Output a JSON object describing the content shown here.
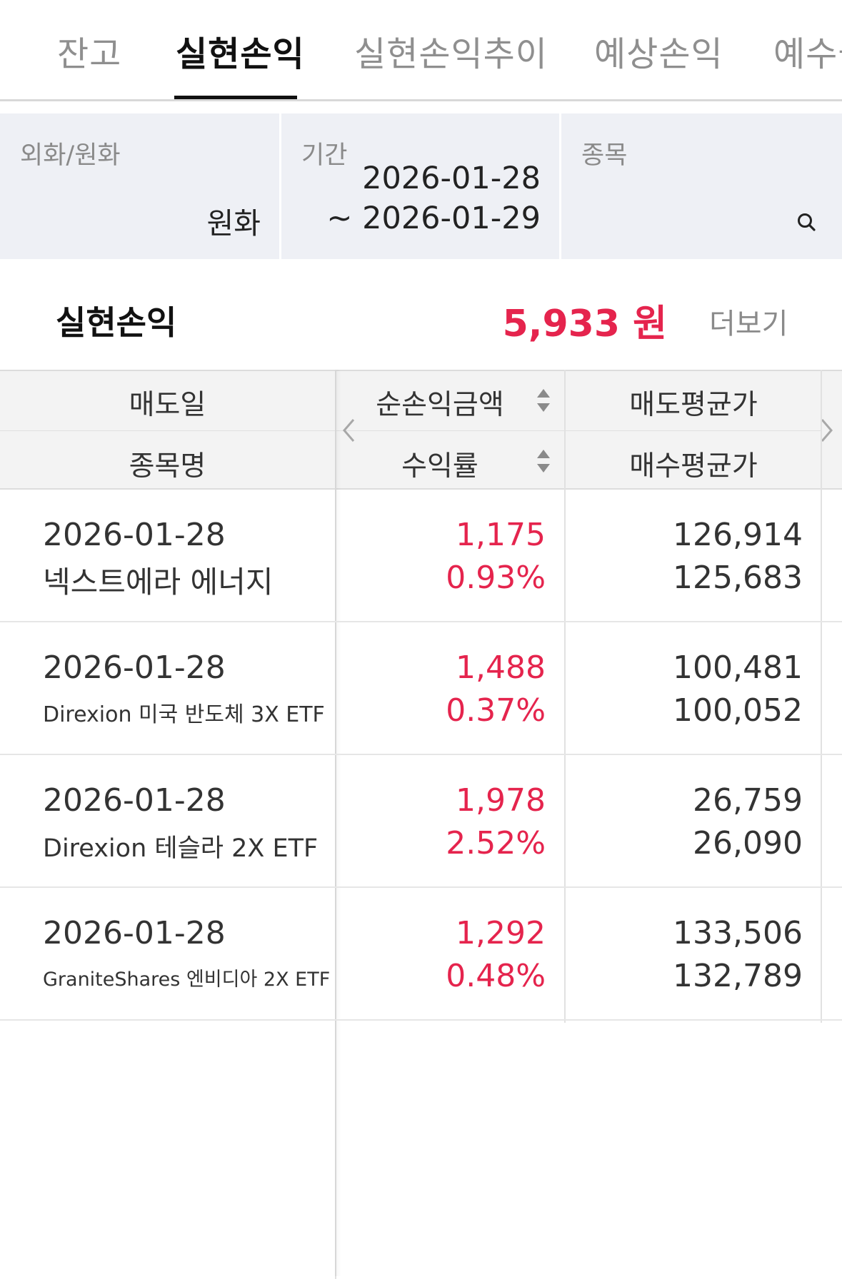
{
  "tabs": [
    {
      "label": "잔고",
      "active": false
    },
    {
      "label": "실현손익",
      "active": true
    },
    {
      "label": "실현손익추이",
      "active": false
    },
    {
      "label": "예상손익",
      "active": false
    },
    {
      "label": "예수금",
      "active": false
    }
  ],
  "filter": {
    "currency": {
      "label": "외화/원화",
      "value": "원화"
    },
    "period": {
      "label": "기간",
      "start": "2026-01-28",
      "end": "~ 2026-01-29"
    },
    "stock": {
      "label": "종목",
      "icon": "search-icon"
    }
  },
  "summary": {
    "title": "실현손익",
    "amount": "5,933 원",
    "more_label": "더보기"
  },
  "table": {
    "headers": {
      "sell_date": "매도일",
      "stock_name": "종목명",
      "net_profit": "순손익금액",
      "return_rate": "수익률",
      "sell_avg": "매도평균가",
      "buy_avg": "매수평균가"
    },
    "nav": {
      "prev_icon": "chevron-left-icon",
      "next_icon": "chevron-right-icon"
    },
    "rows": [
      {
        "date": "2026-01-28",
        "name": "넥스트에라 에너지",
        "profit": "1,175",
        "rate": "0.93%",
        "sell_avg": "126,914",
        "buy_avg": "125,683"
      },
      {
        "date": "2026-01-28",
        "name": "Direxion 미국 반도체 3X ETF",
        "profit": "1,488",
        "rate": "0.37%",
        "sell_avg": "100,481",
        "buy_avg": "100,052"
      },
      {
        "date": "2026-01-28",
        "name": "Direxion 테슬라 2X ETF",
        "profit": "1,978",
        "rate": "2.52%",
        "sell_avg": "26,759",
        "buy_avg": "26,090"
      },
      {
        "date": "2026-01-28",
        "name": "GraniteShares 엔비디아 2X ETF",
        "profit": "1,292",
        "rate": "0.48%",
        "sell_avg": "133,506",
        "buy_avg": "132,789"
      }
    ]
  },
  "colors": {
    "profit_red": "#e5244d",
    "filter_bg": "#eef0f5"
  }
}
